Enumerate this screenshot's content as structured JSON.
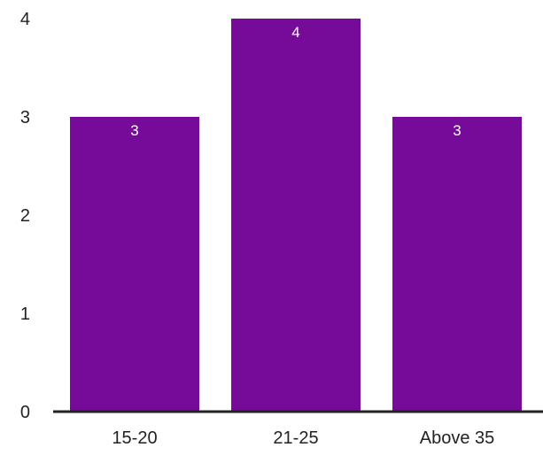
{
  "chart_data": {
    "type": "bar",
    "title": "",
    "xlabel": "",
    "ylabel": "",
    "categories": [
      "15-20",
      "21-25",
      "Above 35"
    ],
    "values": [
      3,
      4,
      3
    ],
    "data_labels": [
      "3",
      "4",
      "3"
    ],
    "ylim": [
      0,
      4
    ],
    "y_ticks": [
      "0",
      "1",
      "2",
      "3",
      "4"
    ],
    "grid": false,
    "legend": "none",
    "colors": {
      "bar": "#760b99",
      "axis": "#222222",
      "label_text": "#222222",
      "data_label_text": "#ffffff"
    }
  }
}
